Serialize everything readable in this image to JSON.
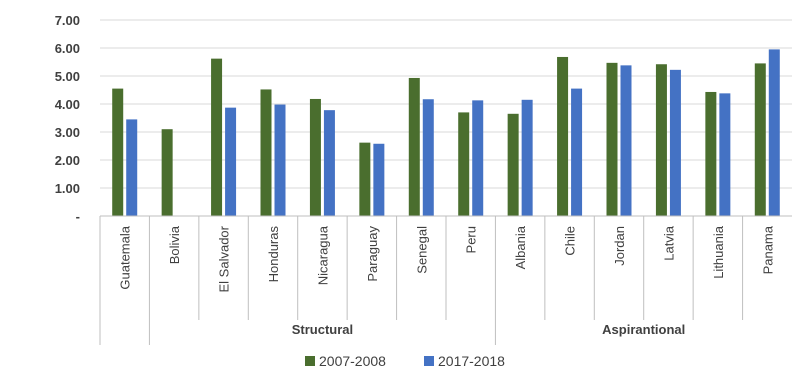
{
  "chart_data": {
    "type": "bar",
    "title": "",
    "xlabel": "",
    "ylabel": "",
    "ylim": [
      0,
      7
    ],
    "yticks": [
      {
        "value": 0,
        "label": "-"
      },
      {
        "value": 1,
        "label": "1.00"
      },
      {
        "value": 2,
        "label": "2.00"
      },
      {
        "value": 3,
        "label": "3.00"
      },
      {
        "value": 4,
        "label": "4.00"
      },
      {
        "value": 5,
        "label": "5.00"
      },
      {
        "value": 6,
        "label": "6.00"
      },
      {
        "value": 7,
        "label": "7.00"
      }
    ],
    "grid": true,
    "legend_position": "bottom",
    "categories": [
      "Guatemala",
      "Bolivia",
      "El Salvador",
      "Honduras",
      "Nicaragua",
      "Paraguay",
      "Senegal",
      "Peru",
      "Albania",
      "Chile",
      "Jordan",
      "Latvia",
      "Lithuania",
      "Panama"
    ],
    "groups": [
      {
        "label": "",
        "categories": [
          "Guatemala"
        ]
      },
      {
        "label": "Structural",
        "categories": [
          "Bolivia",
          "El Salvador",
          "Honduras",
          "Nicaragua",
          "Paraguay",
          "Senegal",
          "Peru"
        ]
      },
      {
        "label": "Aspirantional",
        "categories": [
          "Albania",
          "Chile",
          "Jordan",
          "Latvia",
          "Lithuania",
          "Panama"
        ]
      }
    ],
    "series": [
      {
        "name": "2007-2008",
        "color": "#4a6e2e",
        "values": [
          4.55,
          3.1,
          5.62,
          4.52,
          4.18,
          2.62,
          4.93,
          3.7,
          3.65,
          5.68,
          5.47,
          5.42,
          4.43,
          5.45
        ]
      },
      {
        "name": "2017-2018",
        "color": "#4472c4",
        "values": [
          3.45,
          null,
          3.87,
          3.98,
          3.78,
          2.58,
          4.17,
          4.13,
          4.15,
          4.55,
          5.38,
          5.22,
          4.38,
          5.95
        ]
      }
    ]
  }
}
